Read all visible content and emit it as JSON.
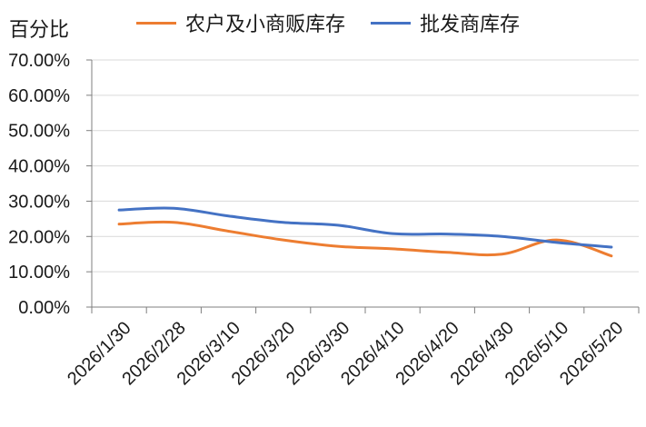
{
  "chart_data": {
    "type": "line",
    "title": "",
    "xlabel": "",
    "ylabel": "百分比",
    "ylim": [
      0,
      0.7
    ],
    "yticks": [
      0,
      0.1,
      0.2,
      0.3,
      0.4,
      0.5,
      0.6,
      0.7
    ],
    "ytick_labels": [
      "0.00%",
      "10.00%",
      "20.00%",
      "30.00%",
      "40.00%",
      "50.00%",
      "60.00%",
      "70.00%"
    ],
    "categories": [
      "2026/1/30",
      "2026/2/28",
      "2026/3/10",
      "2026/3/20",
      "2026/3/30",
      "2026/4/10",
      "2026/4/20",
      "2026/4/30",
      "2026/5/10",
      "2026/5/20"
    ],
    "grid": true,
    "legend_position": "top",
    "series": [
      {
        "name": "农户及小商贩库存",
        "color": "#ED7D31",
        "values": [
          0.235,
          0.24,
          0.215,
          0.19,
          0.172,
          0.165,
          0.155,
          0.15,
          0.19,
          0.145
        ]
      },
      {
        "name": "批发商库存",
        "color": "#4472C4",
        "values": [
          0.275,
          0.28,
          0.258,
          0.24,
          0.232,
          0.208,
          0.207,
          0.2,
          0.183,
          0.17
        ]
      }
    ]
  }
}
